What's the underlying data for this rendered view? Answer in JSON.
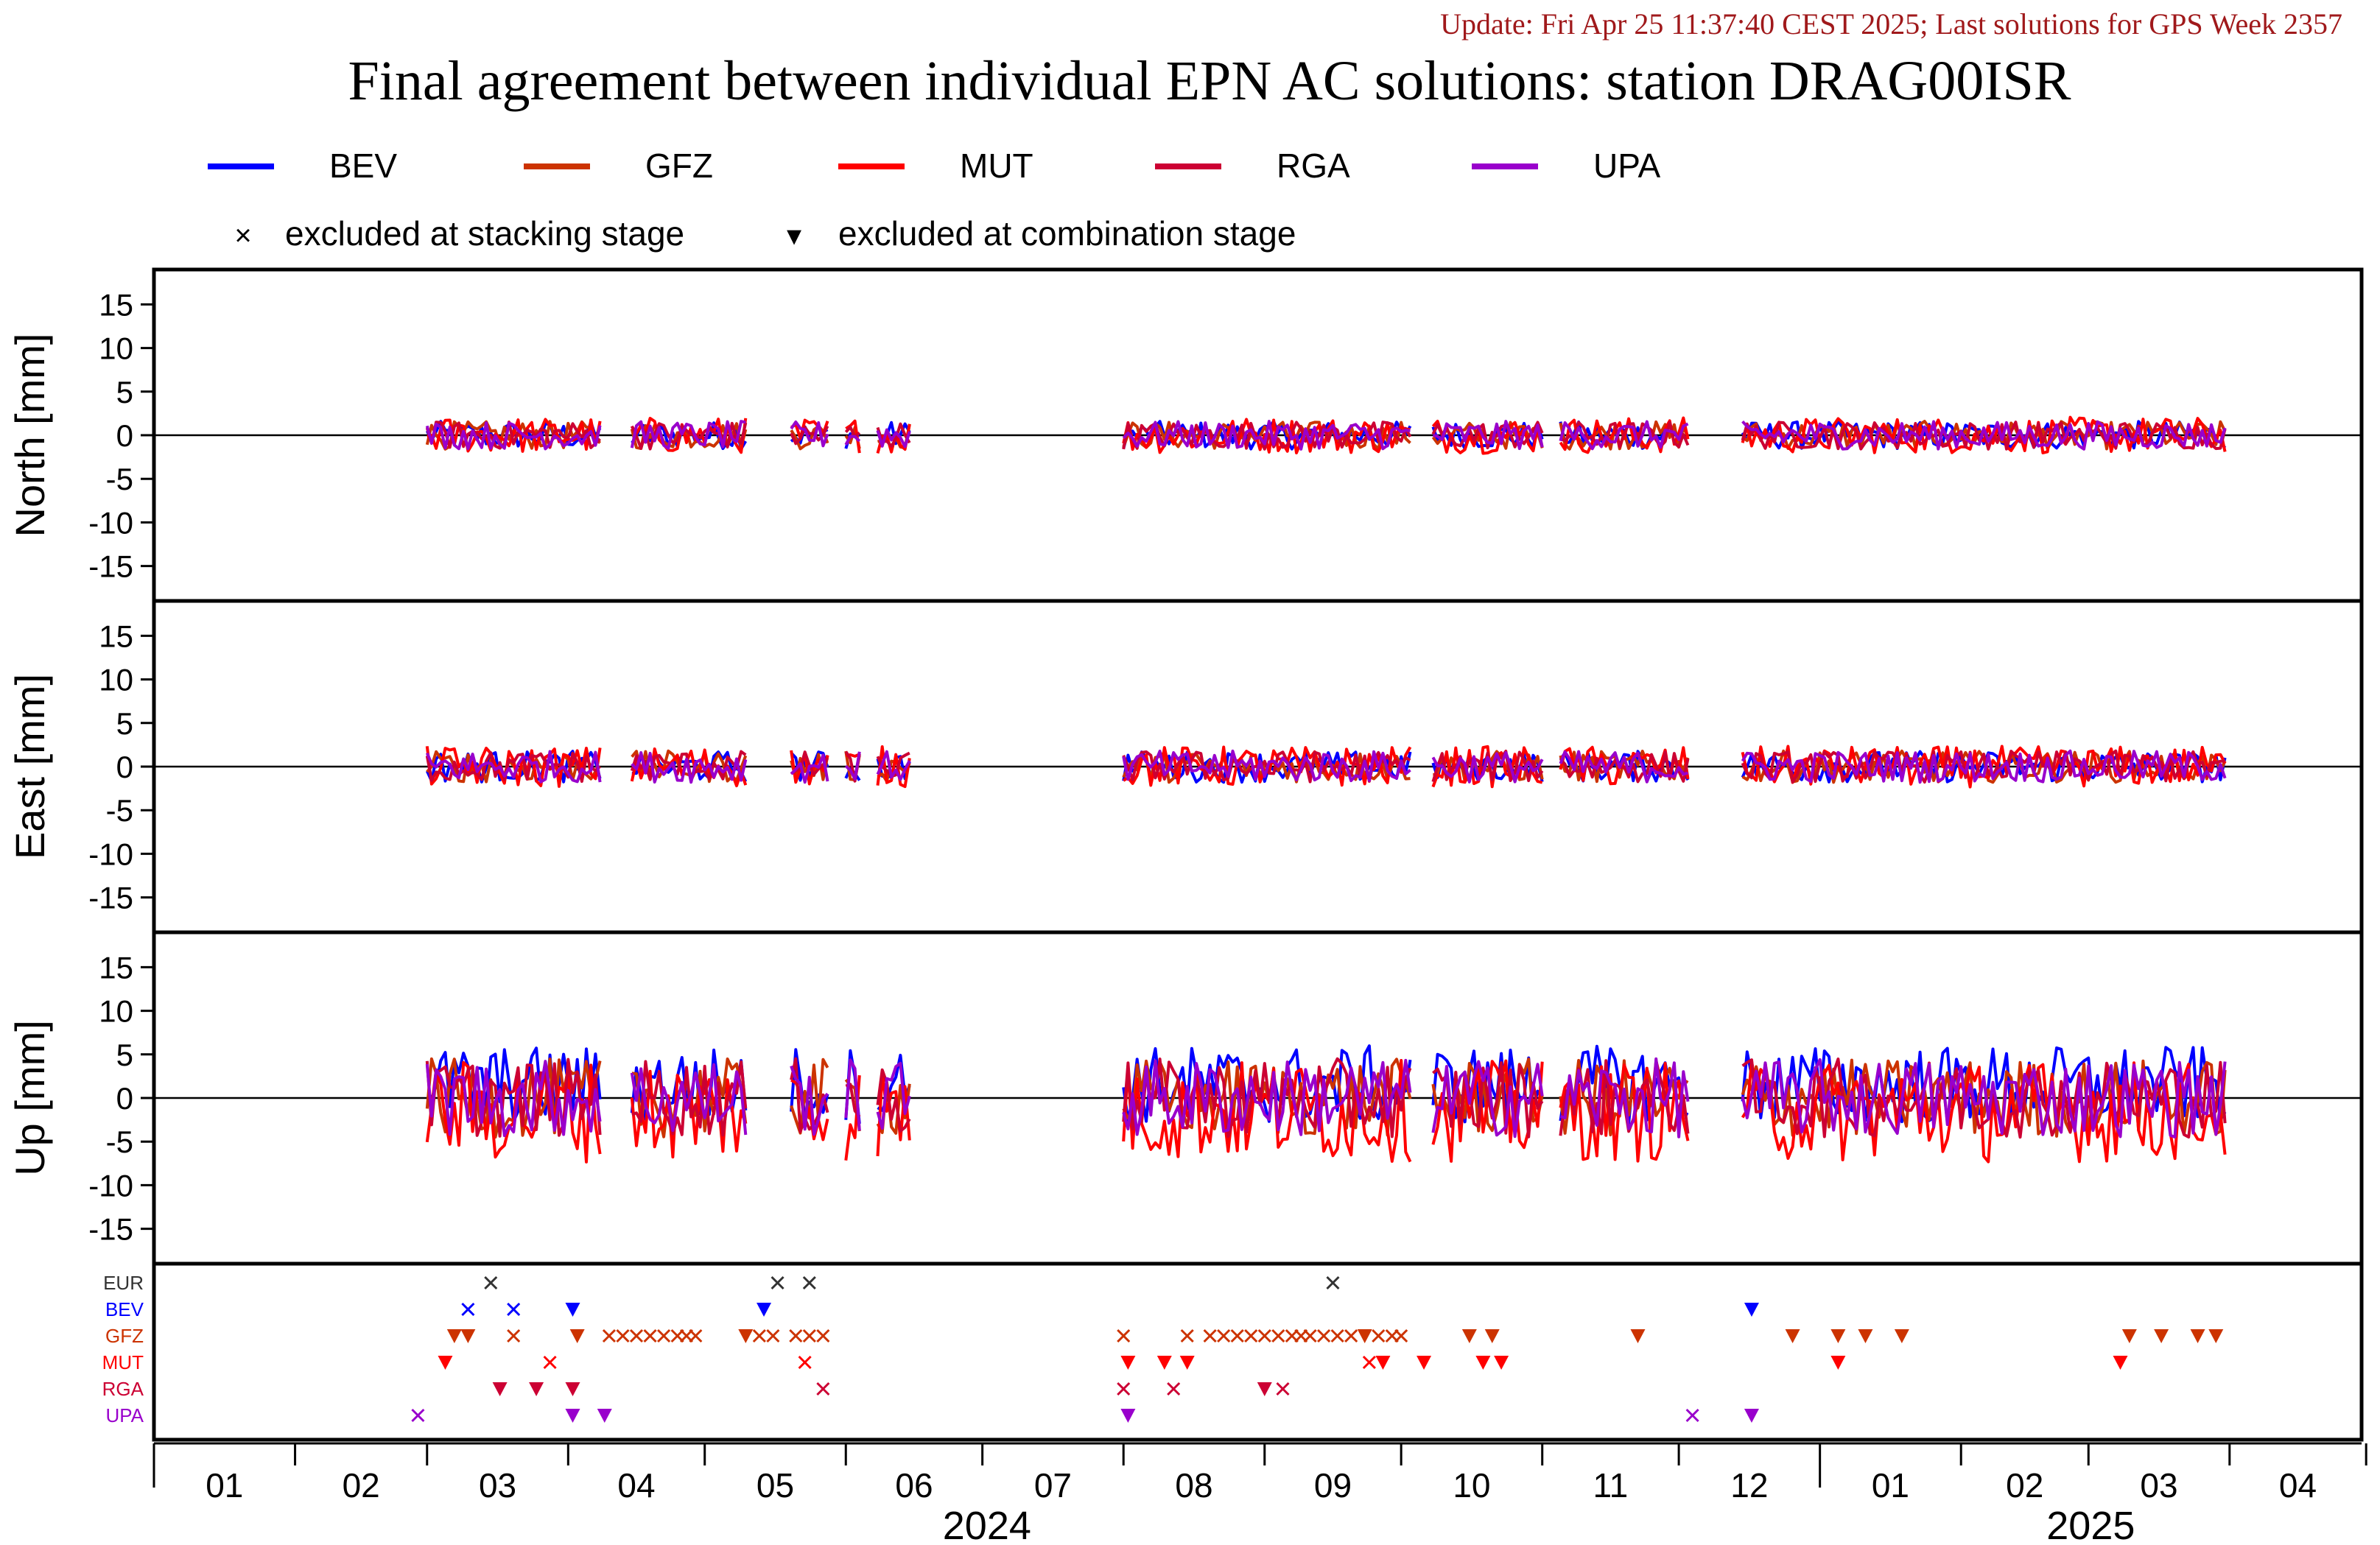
{
  "chart_data": {
    "type": "line",
    "update_text": "Update: Fri Apr 25 11:37:40 CEST 2025; Last solutions for GPS Week 2357",
    "title": "Final agreement between individual EPN AC solutions: station DRAG00ISR",
    "series": [
      {
        "name": "BEV",
        "color": "#0000ff"
      },
      {
        "name": "GFZ",
        "color": "#cc3300"
      },
      {
        "name": "MUT",
        "color": "#ff0000"
      },
      {
        "name": "RGA",
        "color": "#cc0033"
      },
      {
        "name": "UPA",
        "color": "#9900cc"
      }
    ],
    "markers_legend": {
      "stacking_symbol": "×",
      "stacking_label": "excluded at stacking stage",
      "combination_symbol": "▾",
      "combination_label": "excluded at combination stage"
    },
    "panels": [
      {
        "ylabel": "North [mm]",
        "ylim": [
          -19,
          19
        ],
        "yticks": [
          15,
          10,
          5,
          0,
          -5,
          -10,
          -15
        ],
        "amplitude": 1.6
      },
      {
        "ylabel": "East [mm]",
        "ylim": [
          -19,
          19
        ],
        "yticks": [
          15,
          10,
          5,
          0,
          -5,
          -10,
          -15
        ],
        "amplitude": 1.8
      },
      {
        "ylabel": "Up [mm]",
        "ylim": [
          -19,
          19
        ],
        "yticks": [
          15,
          10,
          5,
          0,
          -5,
          -10,
          -15
        ],
        "amplitude": 4.5
      }
    ],
    "x_axis": {
      "range": [
        "2024-01-01",
        "2025-04-30"
      ],
      "month_ticks": [
        "01",
        "02",
        "03",
        "04",
        "05",
        "06",
        "07",
        "08",
        "09",
        "10",
        "11",
        "12",
        "01",
        "02",
        "03",
        "04"
      ],
      "year_labels": [
        "2024",
        "2025"
      ]
    },
    "data_segments": [
      [
        "2024-03-01",
        "2024-04-08"
      ],
      [
        "2024-04-15",
        "2024-05-10"
      ],
      [
        "2024-05-20",
        "2024-05-28"
      ],
      [
        "2024-06-01",
        "2024-06-04"
      ],
      [
        "2024-06-08",
        "2024-06-15"
      ],
      [
        "2024-08-01",
        "2024-10-03"
      ],
      [
        "2024-10-08",
        "2024-11-01"
      ],
      [
        "2024-11-05",
        "2024-12-03"
      ],
      [
        "2024-12-15",
        "2025-03-31"
      ]
    ],
    "exclusion_rows": [
      {
        "label": "EUR",
        "color": "#333333"
      },
      {
        "label": "BEV",
        "color": "#0000ff"
      },
      {
        "label": "GFZ",
        "color": "#cc3300"
      },
      {
        "label": "MUT",
        "color": "#ff0000"
      },
      {
        "label": "RGA",
        "color": "#cc0033"
      },
      {
        "label": "UPA",
        "color": "#9900cc"
      }
    ],
    "exclusions": [
      {
        "row": "EUR",
        "symbol": "x",
        "dates": [
          "2024-03-15",
          "2024-05-17",
          "2024-05-24",
          "2024-09-16"
        ]
      },
      {
        "row": "BEV",
        "symbol": "x",
        "dates": [
          "2024-03-10",
          "2024-03-20"
        ]
      },
      {
        "row": "BEV",
        "symbol": "v",
        "dates": [
          "2024-04-02",
          "2024-05-14",
          "2024-12-17"
        ]
      },
      {
        "row": "GFZ",
        "symbol": "v",
        "dates": [
          "2024-03-07",
          "2024-03-10",
          "2024-04-03",
          "2024-05-10",
          "2024-09-23",
          "2024-10-16",
          "2024-10-21",
          "2024-11-22",
          "2024-12-26",
          "2025-01-05",
          "2025-01-11",
          "2025-01-19",
          "2025-03-10",
          "2025-03-17",
          "2025-03-25",
          "2025-03-29"
        ]
      },
      {
        "row": "GFZ",
        "symbol": "x",
        "dates": [
          "2024-03-20",
          "2024-04-10",
          "2024-04-13",
          "2024-04-16",
          "2024-04-19",
          "2024-04-22",
          "2024-04-25",
          "2024-04-27",
          "2024-04-29",
          "2024-05-13",
          "2024-05-16",
          "2024-05-21",
          "2024-05-24",
          "2024-05-27",
          "2024-08-01",
          "2024-08-15",
          "2024-08-20",
          "2024-08-23",
          "2024-08-26",
          "2024-08-29",
          "2024-09-01",
          "2024-09-04",
          "2024-09-07",
          "2024-09-09",
          "2024-09-11",
          "2024-09-14",
          "2024-09-17",
          "2024-09-20",
          "2024-09-26",
          "2024-09-29",
          "2024-10-01"
        ]
      },
      {
        "row": "MUT",
        "symbol": "v",
        "dates": [
          "2024-03-05",
          "2024-08-02",
          "2024-08-10",
          "2024-08-15",
          "2024-09-27",
          "2024-10-06",
          "2024-10-19",
          "2024-10-23",
          "2025-01-05",
          "2025-03-08"
        ]
      },
      {
        "row": "MUT",
        "symbol": "x",
        "dates": [
          "2024-03-28",
          "2024-05-23",
          "2024-09-24"
        ]
      },
      {
        "row": "RGA",
        "symbol": "v",
        "dates": [
          "2024-03-17",
          "2024-03-25",
          "2024-04-02",
          "2024-09-01"
        ]
      },
      {
        "row": "RGA",
        "symbol": "x",
        "dates": [
          "2024-05-27",
          "2024-08-01",
          "2024-08-12",
          "2024-09-05"
        ]
      },
      {
        "row": "UPA",
        "symbol": "x",
        "dates": [
          "2024-02-28",
          "2024-12-04"
        ]
      },
      {
        "row": "UPA",
        "symbol": "v",
        "dates": [
          "2024-04-02",
          "2024-04-09",
          "2024-08-02",
          "2024-12-17"
        ]
      }
    ]
  }
}
